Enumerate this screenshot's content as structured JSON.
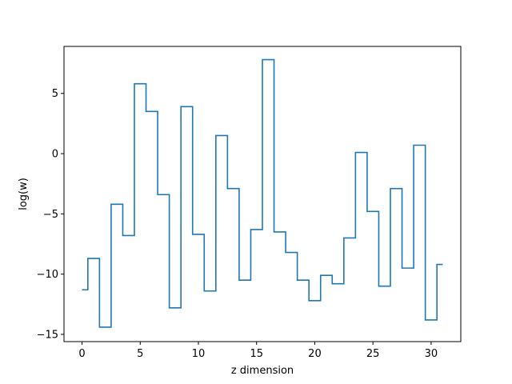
{
  "chart_data": {
    "type": "line",
    "drawstyle": "steps-mid",
    "xlabel": "z dimension",
    "ylabel": "log(w)",
    "xlim": [
      -1.55,
      32.55
    ],
    "ylim": [
      -15.6,
      8.9
    ],
    "xticks": [
      0,
      5,
      10,
      15,
      20,
      25,
      30
    ],
    "yticks": [
      -15,
      -10,
      -5,
      0,
      5
    ],
    "grid": false,
    "line_color": "#1f77b4",
    "series": [
      {
        "x": [
          0,
          1,
          2,
          3,
          4,
          5,
          6,
          7,
          8,
          9,
          10,
          11,
          12,
          13,
          14,
          15,
          16,
          17,
          18,
          19,
          20,
          21,
          22,
          23,
          24,
          25,
          26,
          27,
          28,
          29,
          30,
          31
        ],
        "values": [
          -11.3,
          -8.7,
          -14.4,
          -4.2,
          -6.8,
          5.8,
          3.5,
          -3.4,
          -12.8,
          3.9,
          -6.7,
          -11.4,
          1.5,
          -2.9,
          -10.5,
          -6.3,
          7.8,
          -6.5,
          -8.2,
          -10.5,
          -12.2,
          -10.1,
          -10.8,
          -7.0,
          0.1,
          -4.8,
          -11.0,
          -2.9,
          -9.5,
          0.7,
          -13.8,
          -9.2
        ]
      }
    ]
  }
}
